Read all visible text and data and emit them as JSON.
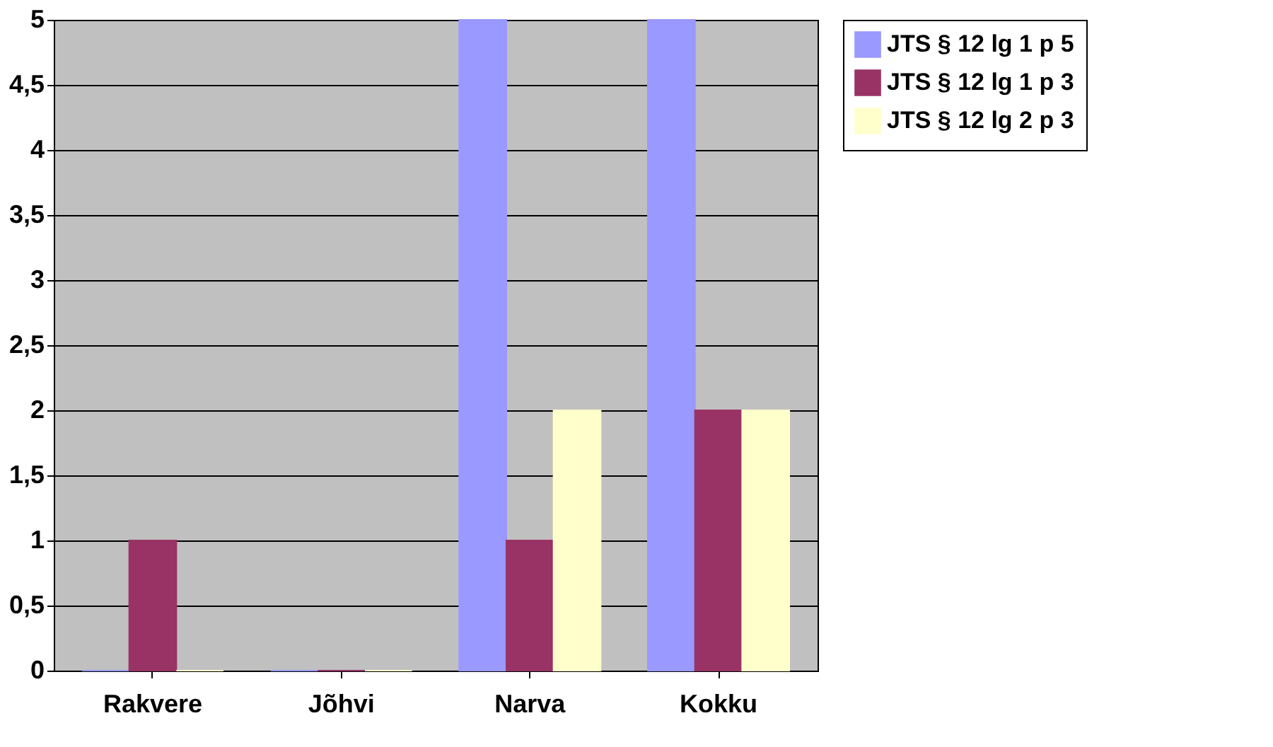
{
  "chart_data": {
    "type": "bar",
    "categories": [
      "Rakvere",
      "Jõhvi",
      "Narva",
      "Kokku"
    ],
    "series": [
      {
        "name": "JTS § 12 lg 1 p 5",
        "color": "#9999ff",
        "values": [
          0,
          0,
          5,
          5
        ]
      },
      {
        "name": "JTS § 12 lg 1 p 3",
        "color": "#993366",
        "values": [
          1,
          0,
          1,
          2
        ]
      },
      {
        "name": "JTS § 12 lg 2 p 3",
        "color": "#ffffcc",
        "values": [
          0,
          0,
          2,
          2
        ]
      }
    ],
    "ylim": [
      0,
      5
    ],
    "yticks": [
      0,
      {
        "value": 0.5,
        "label": "0,5"
      },
      1,
      {
        "value": 1.5,
        "label": "1,5"
      },
      2,
      {
        "value": 2.5,
        "label": "2,5"
      },
      3,
      {
        "value": 3.5,
        "label": "3,5"
      },
      4,
      {
        "value": 4.5,
        "label": "4,5"
      },
      5
    ],
    "grid": "y",
    "legend": "right"
  }
}
